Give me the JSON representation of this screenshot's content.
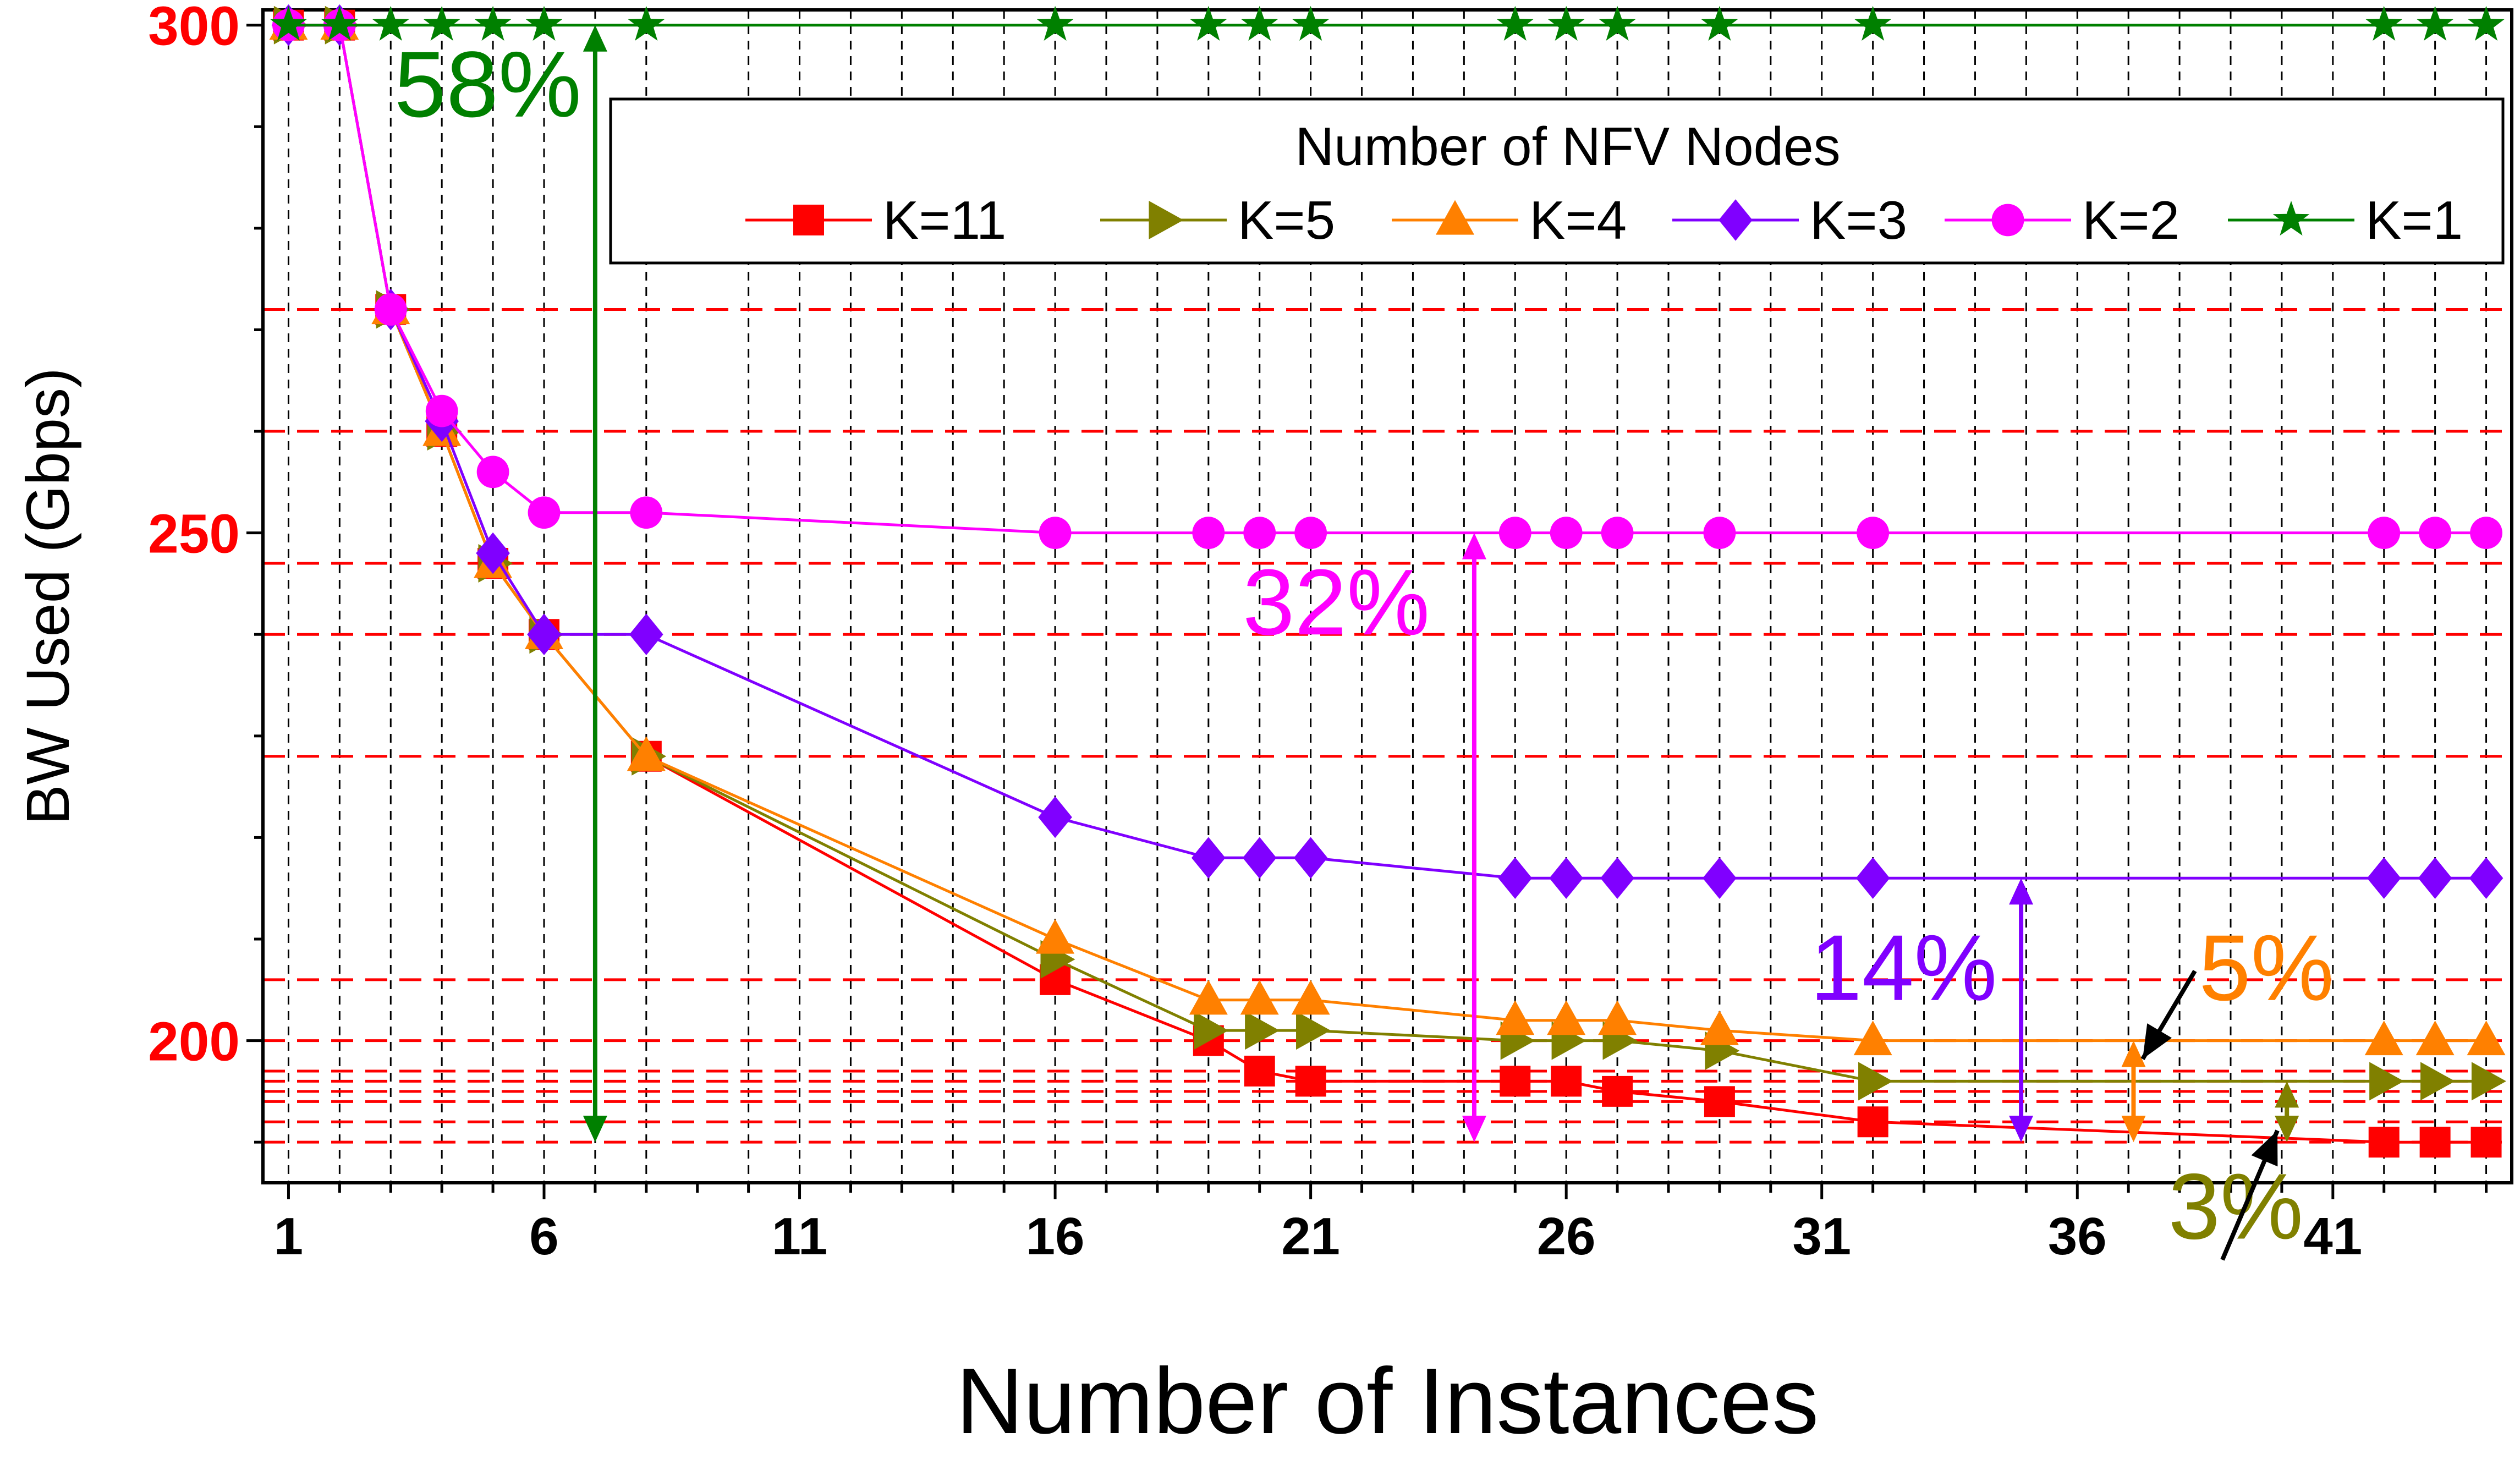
{
  "chart_data": {
    "type": "line",
    "title": "",
    "xlabel": "Number of Instances",
    "ylabel": "BW Used (Gbps)",
    "xlim": [
      0.5,
      44.5
    ],
    "ylim": [
      186,
      301.5
    ],
    "x_ticks": [
      1,
      6,
      11,
      16,
      21,
      26,
      31,
      36,
      41
    ],
    "x_tick_labels": [
      "1",
      "6",
      "11",
      "16",
      "21",
      "26",
      "31",
      "36",
      "41"
    ],
    "y_ticks": [
      200,
      250,
      300
    ],
    "y_tick_labels": [
      "200",
      "250",
      "300"
    ],
    "x_gridlines": [
      1,
      2,
      3,
      4,
      5,
      6,
      7,
      8,
      10,
      11,
      12,
      13,
      14,
      15,
      16,
      17,
      18,
      19,
      20,
      21,
      22,
      23,
      24,
      25,
      26,
      27,
      28,
      29,
      30,
      31,
      32,
      33,
      34,
      35,
      36,
      37,
      38,
      39,
      40,
      41,
      42,
      43,
      44
    ],
    "y_reference_lines": [
      272,
      260,
      247,
      240,
      228,
      206,
      200,
      197,
      196,
      195,
      194,
      192,
      190
    ],
    "legend": {
      "title": "Number of NFV Nodes",
      "position": "top-right",
      "entries": [
        "K=11",
        "K=5",
        "K=4",
        "K=3",
        "K=2",
        "K=1"
      ]
    },
    "series": [
      {
        "name": "K=11",
        "color": "#ff0000",
        "marker": "square",
        "x": [
          1,
          2,
          3,
          4,
          5,
          6,
          8,
          16,
          19,
          20,
          21,
          25,
          26,
          27,
          29,
          32,
          42,
          43,
          44
        ],
        "y": [
          300,
          300,
          272,
          260,
          247,
          240,
          228,
          206,
          200,
          197,
          196,
          196,
          196,
          195,
          194,
          192,
          190,
          190,
          190
        ]
      },
      {
        "name": "K=5",
        "color": "#808000",
        "marker": "triangle-right",
        "x": [
          1,
          2,
          3,
          4,
          5,
          6,
          8,
          16,
          19,
          20,
          21,
          25,
          26,
          27,
          29,
          32,
          42,
          43,
          44
        ],
        "y": [
          300,
          300,
          272,
          260,
          247,
          240,
          228,
          208,
          201,
          201,
          201,
          200,
          200,
          200,
          199,
          196,
          196,
          196,
          196
        ]
      },
      {
        "name": "K=4",
        "color": "#ff8000",
        "marker": "triangle-up",
        "x": [
          1,
          2,
          3,
          4,
          5,
          6,
          8,
          16,
          19,
          20,
          21,
          25,
          26,
          27,
          29,
          32,
          42,
          43,
          44
        ],
        "y": [
          300,
          300,
          272,
          260,
          247,
          240,
          228,
          210,
          204,
          204,
          204,
          202,
          202,
          202,
          201,
          200,
          200,
          200,
          200
        ]
      },
      {
        "name": "K=3",
        "color": "#8000ff",
        "marker": "diamond",
        "x": [
          1,
          2,
          3,
          4,
          5,
          6,
          8,
          16,
          19,
          20,
          21,
          25,
          26,
          27,
          29,
          32,
          42,
          43,
          44
        ],
        "y": [
          300,
          300,
          272,
          261,
          248,
          240,
          240,
          222,
          218,
          218,
          218,
          216,
          216,
          216,
          216,
          216,
          216,
          216,
          216
        ]
      },
      {
        "name": "K=2",
        "color": "#ff00ff",
        "marker": "circle",
        "x": [
          1,
          2,
          3,
          4,
          5,
          6,
          8,
          16,
          19,
          20,
          21,
          25,
          26,
          27,
          29,
          32,
          42,
          43,
          44
        ],
        "y": [
          300,
          300,
          272,
          262,
          256,
          252,
          252,
          250,
          250,
          250,
          250,
          250,
          250,
          250,
          250,
          250,
          250,
          250,
          250
        ]
      },
      {
        "name": "K=1",
        "color": "#008000",
        "marker": "star",
        "x": [
          1,
          2,
          3,
          4,
          5,
          6,
          8,
          16,
          19,
          20,
          21,
          25,
          26,
          27,
          29,
          32,
          42,
          43,
          44
        ],
        "y": [
          300,
          300,
          300,
          300,
          300,
          300,
          300,
          300,
          300,
          300,
          300,
          300,
          300,
          300,
          300,
          300,
          300,
          300,
          300
        ]
      }
    ],
    "annotations": [
      {
        "text": "58%",
        "color": "#008000",
        "arrow_x": 7,
        "arrow_y": [
          300,
          190
        ],
        "text_x": 4.9,
        "text_y": 291
      },
      {
        "text": "32%",
        "color": "#ff00ff",
        "arrow_x": 24.2,
        "arrow_y": [
          250,
          190
        ],
        "text_x": 21.5,
        "text_y": 240
      },
      {
        "text": "14%",
        "color": "#8000ff",
        "arrow_x": 34.9,
        "arrow_y": [
          216,
          190
        ],
        "text_x": 32.6,
        "text_y": 204
      },
      {
        "text": "5%",
        "color": "#ff8000",
        "arrow_x": 37.1,
        "arrow_y": [
          200,
          190
        ],
        "text_x": 39.7,
        "text_y": 204
      },
      {
        "text": "3%",
        "color": "#808000",
        "arrow_x": 40.1,
        "arrow_y": [
          196,
          190
        ],
        "text_x": 39.1,
        "text_y": 180.5
      }
    ]
  }
}
